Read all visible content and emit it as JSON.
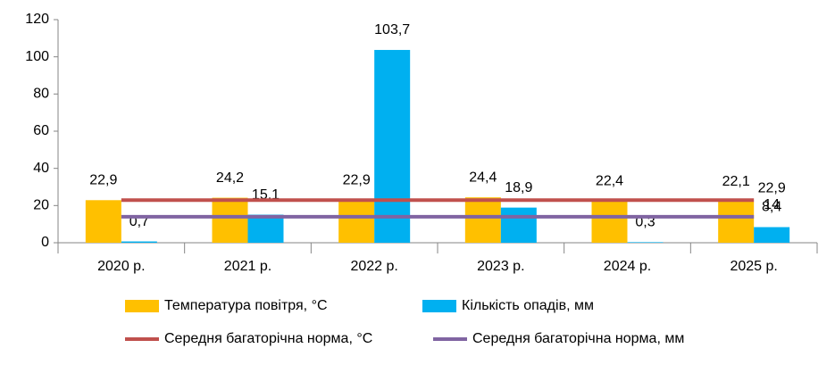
{
  "chart_data": {
    "type": "bar",
    "categories": [
      "2020 р.",
      "2021 р.",
      "2022 р.",
      "2023 р.",
      "2024 р.",
      "2025 р."
    ],
    "series": [
      {
        "name": "Температура повітря, °C",
        "color": "#ffc000",
        "type": "bar",
        "values": [
          22.9,
          24.2,
          22.9,
          24.4,
          22.4,
          22.1
        ],
        "value_labels": [
          "22,9",
          "24,2",
          "22,9",
          "24,4",
          "22,4",
          "22,1"
        ]
      },
      {
        "name": "Кількість опадів, мм",
        "color": "#00b0f0",
        "type": "bar",
        "values": [
          0.7,
          15.1,
          103.7,
          18.9,
          0.3,
          8.4
        ],
        "value_labels": [
          "0,7",
          "15,1",
          "103,7",
          "18,9",
          "0,3",
          "8,4"
        ]
      },
      {
        "name": "Середня багаторічна норма, °C",
        "color": "#c0504d",
        "type": "line",
        "values": [
          22.9,
          22.9,
          22.9,
          22.9,
          22.9,
          22.9
        ],
        "value_labels": [
          null,
          null,
          null,
          null,
          null,
          "22,9"
        ]
      },
      {
        "name": "Середня багаторічна норма, мм",
        "color": "#8064a2",
        "type": "line",
        "values": [
          14,
          14,
          14,
          14,
          14,
          14
        ],
        "value_labels": [
          null,
          null,
          null,
          null,
          null,
          "14"
        ]
      }
    ],
    "ylim": [
      0,
      120
    ],
    "yticks": [
      0,
      20,
      40,
      60,
      80,
      100,
      120
    ],
    "grid": false
  }
}
